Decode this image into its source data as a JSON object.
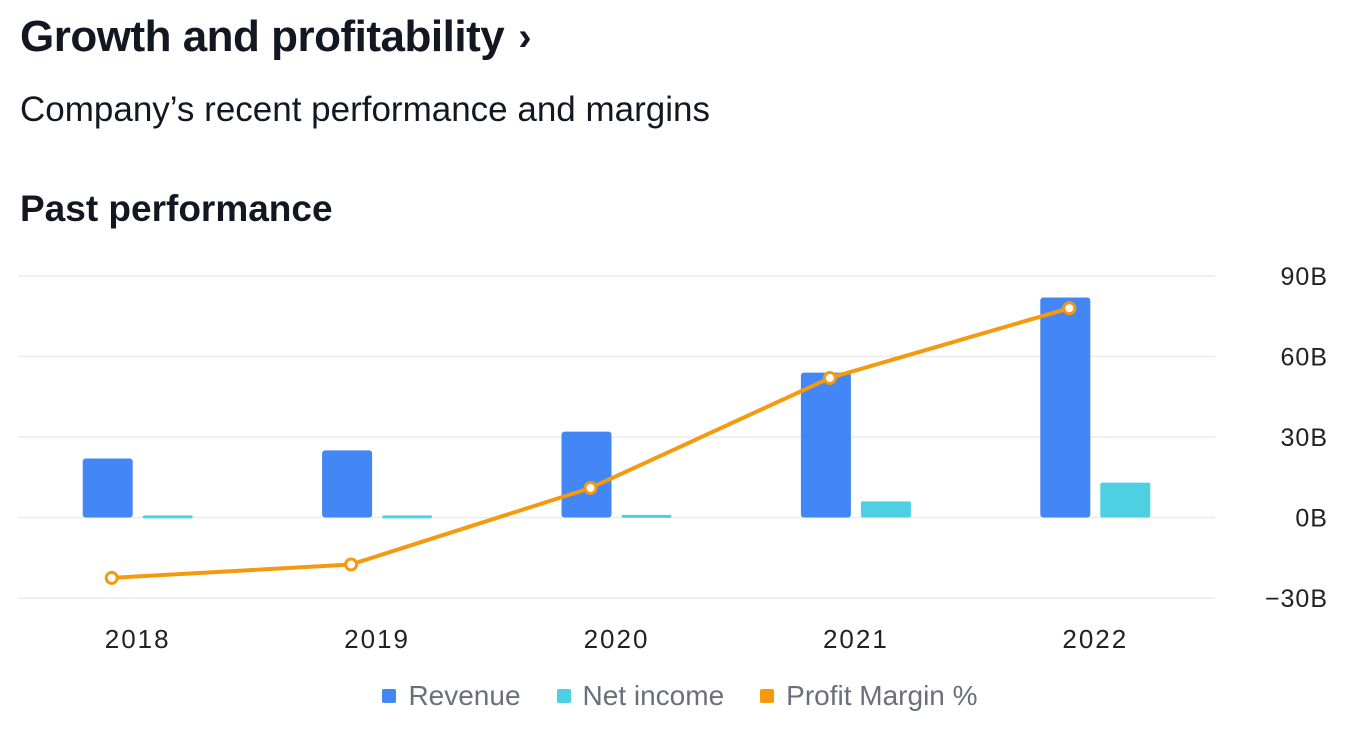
{
  "header": {
    "title": "Growth and profitability",
    "chevron": "›",
    "subtitle": "Company’s recent performance and margins"
  },
  "section_title": "Past performance",
  "colors": {
    "revenue": "#4287f5",
    "net_income": "#4dd0e1",
    "profit_margin": "#f5990e",
    "grid": "#ececec",
    "axis_text": "#222222"
  },
  "chart_data": {
    "type": "bar",
    "categories": [
      "2018",
      "2019",
      "2020",
      "2021",
      "2022"
    ],
    "series": [
      {
        "name": "Revenue",
        "type": "bar",
        "values": [
          22,
          25,
          32,
          54,
          82
        ]
      },
      {
        "name": "Net income",
        "type": "bar",
        "values": [
          0.8,
          0.8,
          1.0,
          6,
          13
        ]
      },
      {
        "name": "Profit Margin %",
        "type": "line",
        "values": [
          -22.5,
          -17.5,
          11,
          52,
          78
        ]
      }
    ],
    "y_ticks": [
      90,
      60,
      30,
      0,
      -30
    ],
    "y_tick_labels": [
      "90B",
      "60B",
      "30B",
      "0B",
      "−30B"
    ],
    "ylim": [
      -30,
      90
    ],
    "grid": true,
    "legend": "bottom-center"
  }
}
